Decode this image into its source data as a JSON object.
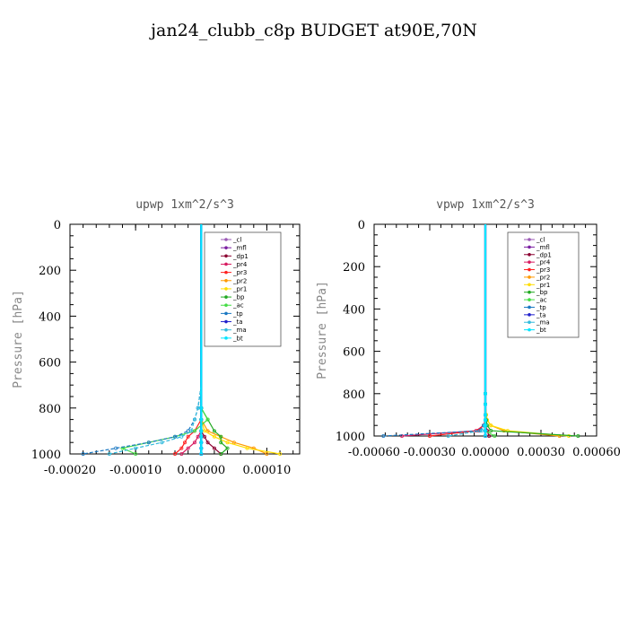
{
  "page_title": "jan24_clubb_c8p  BUDGET at90E,70N",
  "series_styles": [
    {
      "name": "_cl",
      "color": "#9b59b6"
    },
    {
      "name": "_mfl",
      "color": "#7b1fa2"
    },
    {
      "name": "_dp1",
      "color": "#8b0030"
    },
    {
      "name": "_pr4",
      "color": "#d81b60"
    },
    {
      "name": "_pr3",
      "color": "#ff2020"
    },
    {
      "name": "_pr2",
      "color": "#ff9900"
    },
    {
      "name": "_pr1",
      "color": "#ffdd00"
    },
    {
      "name": "_bp",
      "color": "#22aa22"
    },
    {
      "name": "_ac",
      "color": "#44dd44"
    },
    {
      "name": "_tp",
      "color": "#1a78c2"
    },
    {
      "name": "_ta",
      "color": "#2222cc"
    },
    {
      "name": "_ma",
      "color": "#33bbdd"
    },
    {
      "name": "_bt",
      "color": "#00e5ff"
    }
  ],
  "chart_data": [
    {
      "type": "line",
      "title": "upwp    1xm^2/s^3",
      "ylabel": "Pressure  [hPa]",
      "xlim": [
        -0.0002,
        0.00015
      ],
      "ylim": [
        1000,
        0
      ],
      "xticks": [
        -0.0002,
        -0.0001,
        0.0,
        0.0001
      ],
      "xtick_labels": [
        "-0.00020",
        "-0.00010",
        "0.00000",
        "0.00010"
      ],
      "yticks": [
        0,
        200,
        400,
        600,
        800,
        1000
      ],
      "ytick_labels": [
        "0",
        "200",
        "400",
        "600",
        "800",
        "1000"
      ],
      "legend": "top-right",
      "pressure": [
        0,
        100,
        200,
        300,
        400,
        500,
        600,
        700,
        800,
        850,
        900,
        925,
        950,
        975,
        1000
      ],
      "series": [
        {
          "name": "_cl",
          "values": [
            0,
            0,
            0,
            0,
            0,
            0,
            0,
            0,
            0,
            0,
            0,
            0,
            0,
            0,
            0
          ]
        },
        {
          "name": "_mfl",
          "values": [
            0,
            0,
            0,
            0,
            0,
            0,
            0,
            0,
            0,
            0,
            0,
            0,
            0,
            0,
            0
          ]
        },
        {
          "name": "_dp1",
          "values": [
            0,
            0,
            0,
            0,
            0,
            0,
            0,
            0,
            0,
            0,
            0,
            5e-06,
            1e-05,
            2e-05,
            3e-05
          ]
        },
        {
          "name": "_pr4",
          "values": [
            0,
            0,
            0,
            0,
            0,
            0,
            0,
            0,
            0,
            0,
            0,
            -5e-06,
            -1e-05,
            -2e-05,
            -3e-05
          ]
        },
        {
          "name": "_pr3",
          "values": [
            0,
            0,
            0,
            0,
            0,
            0,
            0,
            0,
            0,
            0,
            -1e-05,
            -2e-05,
            -2.5e-05,
            -3e-05,
            -4e-05
          ]
        },
        {
          "name": "_pr2",
          "values": [
            0,
            0,
            0,
            0,
            0,
            0,
            0,
            0,
            0,
            0,
            1e-05,
            3e-05,
            5e-05,
            8e-05,
            0.0001
          ]
        },
        {
          "name": "_pr1",
          "values": [
            0,
            0,
            0,
            0,
            0,
            0,
            0,
            0,
            0,
            0,
            5e-06,
            2e-05,
            4e-05,
            7e-05,
            0.00012
          ]
        },
        {
          "name": "_bp",
          "values": [
            0,
            0,
            0,
            0,
            0,
            0,
            0,
            0,
            0,
            1e-05,
            2e-05,
            3e-05,
            3e-05,
            4e-05,
            3e-05
          ]
        },
        {
          "name": "_ac",
          "values": [
            0,
            0,
            0,
            0,
            0,
            0,
            0,
            0,
            0,
            1e-05,
            -1e-05,
            -4e-05,
            -8e-05,
            -0.00012,
            -0.0001
          ]
        },
        {
          "name": "_tp",
          "values": [
            0,
            0,
            0,
            0,
            0,
            0,
            0,
            0,
            -5e-06,
            -1e-05,
            -2e-05,
            -4e-05,
            -8e-05,
            -0.00013,
            -0.00018
          ]
        },
        {
          "name": "_ta",
          "values": [
            0,
            0,
            0,
            0,
            0,
            0,
            0,
            0,
            0,
            0,
            0,
            0,
            0,
            0,
            0
          ]
        },
        {
          "name": "_ma",
          "values": [
            0,
            0,
            0,
            0,
            0,
            0,
            0,
            0,
            -5e-06,
            -1e-05,
            -1.5e-05,
            -3e-05,
            -6e-05,
            -0.0001,
            -0.00014
          ]
        },
        {
          "name": "_bt",
          "values": [
            0,
            0,
            0,
            0,
            0,
            0,
            0,
            0,
            0,
            0,
            0,
            0,
            0,
            0,
            0
          ]
        }
      ]
    },
    {
      "type": "line",
      "title": "vpwp    1xm^2/s^3",
      "ylabel": "Pressure  [hPa]",
      "xlim": [
        -0.0006,
        0.0006
      ],
      "ylim": [
        1000,
        0
      ],
      "xticks": [
        -0.0006,
        -0.0003,
        0.0,
        0.0003,
        0.0006
      ],
      "xtick_labels": [
        "-0.00060",
        "-0.00030",
        "0.00000",
        "0.00030",
        "0.00060"
      ],
      "yticks": [
        0,
        200,
        400,
        600,
        800,
        1000
      ],
      "ytick_labels": [
        "0",
        "200",
        "400",
        "600",
        "800",
        "1000"
      ],
      "legend": "top-right",
      "pressure": [
        0,
        100,
        200,
        300,
        400,
        500,
        600,
        700,
        800,
        850,
        900,
        925,
        950,
        975,
        1000
      ],
      "series": [
        {
          "name": "_cl",
          "values": [
            0,
            0,
            0,
            0,
            0,
            0,
            0,
            0,
            0,
            0,
            0,
            0,
            0,
            0,
            0
          ]
        },
        {
          "name": "_mfl",
          "values": [
            0,
            0,
            0,
            0,
            0,
            0,
            0,
            0,
            0,
            0,
            0,
            0,
            0,
            0,
            0
          ]
        },
        {
          "name": "_dp1",
          "values": [
            0,
            0,
            0,
            0,
            0,
            0,
            0,
            0,
            0,
            0,
            0,
            0,
            0,
            1e-05,
            2e-05
          ]
        },
        {
          "name": "_pr4",
          "values": [
            0,
            0,
            0,
            0,
            0,
            0,
            0,
            0,
            0,
            0,
            0,
            0,
            -1e-05,
            -5e-05,
            -0.00045
          ]
        },
        {
          "name": "_pr3",
          "values": [
            0,
            0,
            0,
            0,
            0,
            0,
            0,
            0,
            0,
            0,
            0,
            0,
            -1e-05,
            -4e-05,
            -0.0003
          ]
        },
        {
          "name": "_pr2",
          "values": [
            0,
            0,
            0,
            0,
            0,
            0,
            0,
            0,
            0,
            0,
            5e-06,
            1e-05,
            3e-05,
            0.0001,
            0.0004
          ]
        },
        {
          "name": "_pr1",
          "values": [
            0,
            0,
            0,
            0,
            0,
            0,
            0,
            0,
            0,
            0,
            5e-06,
            1e-05,
            3e-05,
            0.00012,
            0.00045
          ]
        },
        {
          "name": "_bp",
          "values": [
            0,
            0,
            0,
            0,
            0,
            0,
            0,
            0,
            0,
            0,
            0,
            5e-06,
            1e-05,
            3e-05,
            0.0005
          ]
        },
        {
          "name": "_ac",
          "values": [
            0,
            0,
            0,
            0,
            0,
            0,
            0,
            0,
            0,
            0,
            0,
            0,
            0,
            0,
            5e-05
          ]
        },
        {
          "name": "_tp",
          "values": [
            0,
            0,
            0,
            0,
            0,
            0,
            0,
            0,
            0,
            0,
            0,
            0,
            -1e-05,
            -3e-05,
            -0.00055
          ]
        },
        {
          "name": "_ta",
          "values": [
            0,
            0,
            0,
            0,
            0,
            0,
            0,
            0,
            0,
            0,
            0,
            0,
            0,
            0,
            0
          ]
        },
        {
          "name": "_ma",
          "values": [
            0,
            0,
            0,
            0,
            0,
            0,
            0,
            0,
            0,
            0,
            0,
            0,
            -5e-06,
            -2e-05,
            -0.0002
          ]
        },
        {
          "name": "_bt",
          "values": [
            0,
            0,
            0,
            0,
            0,
            0,
            0,
            0,
            0,
            0,
            0,
            0,
            0,
            0,
            0
          ]
        }
      ]
    }
  ]
}
